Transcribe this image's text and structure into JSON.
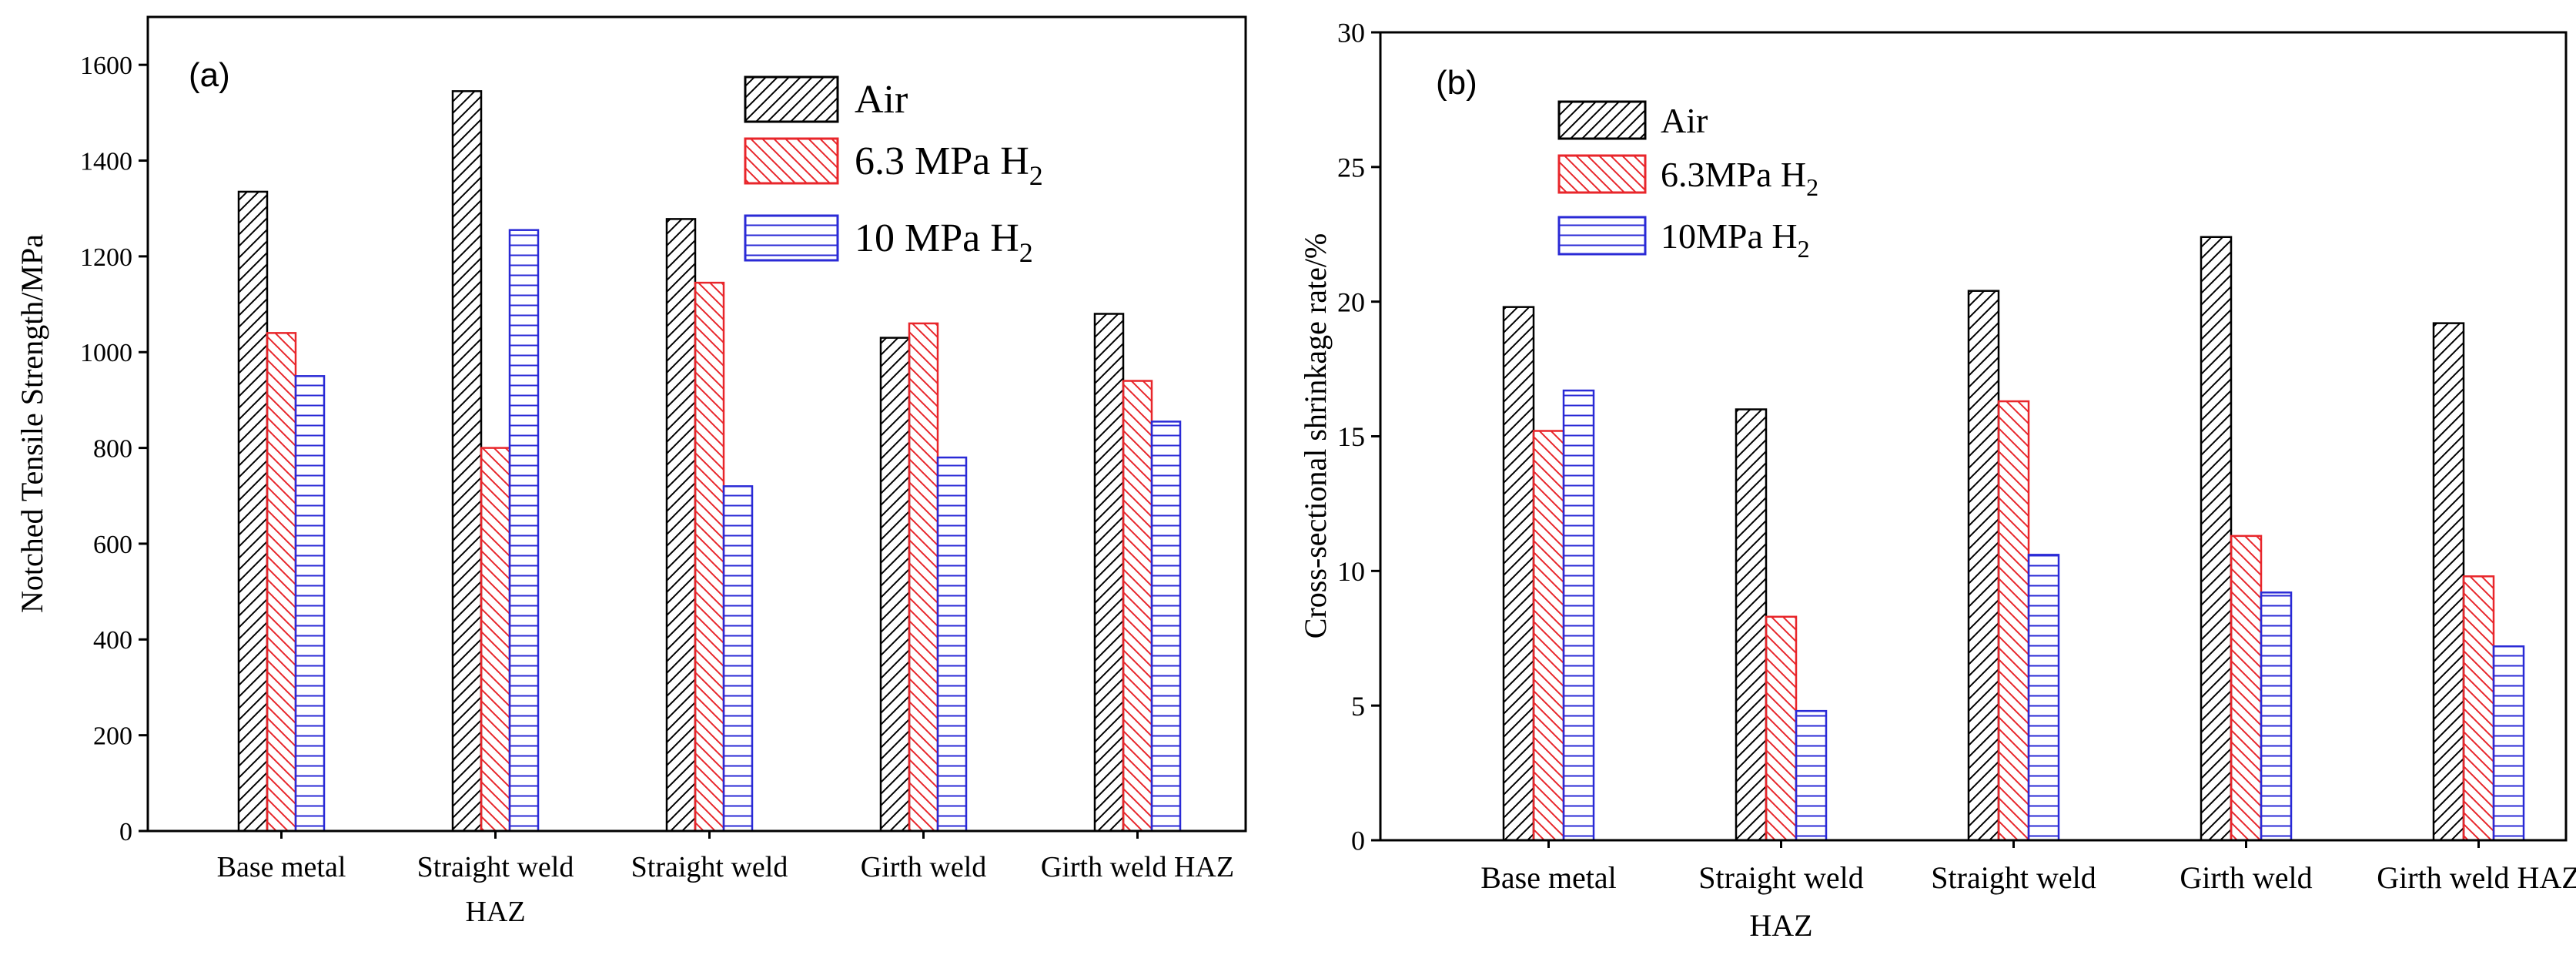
{
  "figure": {
    "charts": [
      {
        "type": "bar",
        "panel_label": "(a)",
        "title": "",
        "xlabel": "",
        "ylabel": "Notched Tensile Strength/MPa",
        "categories": [
          "Base metal",
          "Straight weld",
          "Straight weld",
          "Girth weld",
          "Girth weld HAZ"
        ],
        "category_sublabels": [
          "",
          "HAZ",
          "",
          "",
          ""
        ],
        "ylim": [
          0,
          1700
        ],
        "yticks": [
          0,
          200,
          400,
          600,
          800,
          1000,
          1200,
          1400,
          1600
        ],
        "legend_position": "top-right",
        "series": [
          {
            "name": "Air",
            "legend_label": "Air",
            "legend_sub": "",
            "color": "#000000",
            "pattern": "diag-right",
            "values": [
              1335,
              1545,
              1278,
              1030,
              1080
            ]
          },
          {
            "name": "6.3 MPa H2",
            "legend_label": "6.3 MPa H",
            "legend_sub": "2",
            "color": "#e8262b",
            "pattern": "diag-left",
            "values": [
              1040,
              800,
              1145,
              1060,
              940
            ]
          },
          {
            "name": "10 MPa H2",
            "legend_label": "10 MPa H",
            "legend_sub": "2",
            "color": "#2a2ad6",
            "pattern": "horizontal",
            "values": [
              950,
              1255,
              720,
              780,
              855
            ]
          }
        ]
      },
      {
        "type": "bar",
        "panel_label": "(b)",
        "title": "",
        "xlabel": "",
        "ylabel": "Cross-sectional shrinkage rate/%",
        "categories": [
          "Base metal",
          "Straight weld",
          "Straight weld",
          "Girth weld",
          "Girth weld HAZ"
        ],
        "category_sublabels": [
          "",
          "HAZ",
          "",
          "",
          ""
        ],
        "ylim": [
          0,
          30
        ],
        "yticks": [
          0,
          5,
          10,
          15,
          20,
          25,
          30
        ],
        "legend_position": "top-left",
        "series": [
          {
            "name": "Air",
            "legend_label": "Air",
            "legend_sub": "",
            "color": "#000000",
            "pattern": "diag-right",
            "values": [
              19.8,
              16.0,
              20.4,
              22.4,
              19.2
            ]
          },
          {
            "name": "6.3MPa H2",
            "legend_label": "6.3MPa H",
            "legend_sub": "2",
            "color": "#e8262b",
            "pattern": "diag-left",
            "values": [
              15.2,
              8.3,
              16.3,
              11.3,
              9.8
            ]
          },
          {
            "name": "10MPa H2",
            "legend_label": "10MPa H",
            "legend_sub": "2",
            "color": "#2a2ad6",
            "pattern": "horizontal",
            "values": [
              16.7,
              4.8,
              10.6,
              9.2,
              7.2
            ]
          }
        ]
      }
    ]
  }
}
